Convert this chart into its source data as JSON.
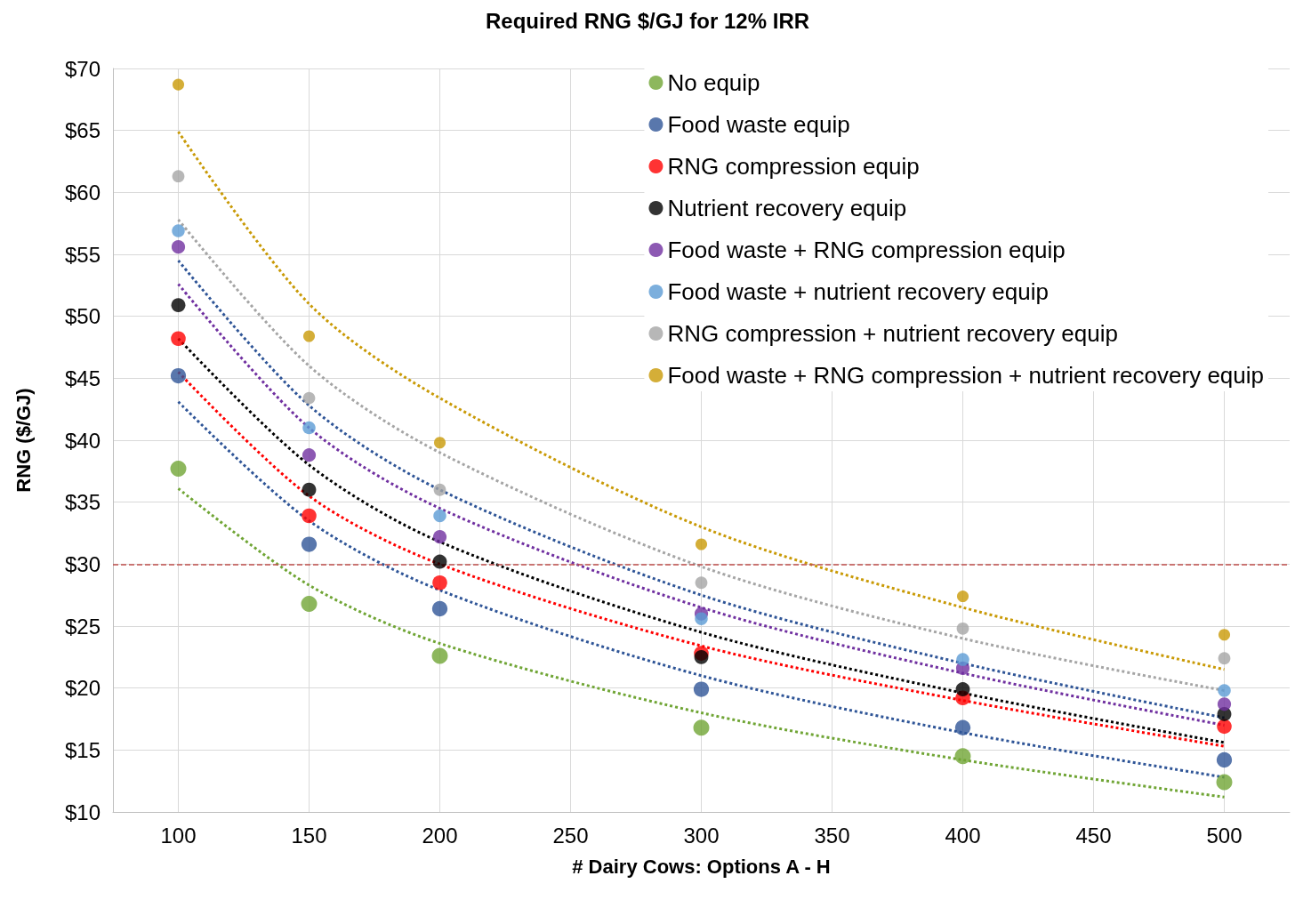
{
  "chart_data": {
    "type": "scatter",
    "title": "Required RNG $/GJ for 12% IRR",
    "xlabel": "# Dairy Cows: Options A - H",
    "ylabel": "RNG ($/GJ)",
    "x": [
      100,
      150,
      200,
      300,
      400,
      500
    ],
    "xlim": [
      75,
      525
    ],
    "xticks": [
      100,
      150,
      200,
      250,
      300,
      350,
      400,
      450,
      500
    ],
    "ylim": [
      10,
      70
    ],
    "yticks": [
      {
        "value": 10,
        "label": "$10"
      },
      {
        "value": 15,
        "label": "$15"
      },
      {
        "value": 20,
        "label": "$20"
      },
      {
        "value": 25,
        "label": "$25"
      },
      {
        "value": 30,
        "label": "$30"
      },
      {
        "value": 35,
        "label": "$35"
      },
      {
        "value": 40,
        "label": "$40"
      },
      {
        "value": 45,
        "label": "$45"
      },
      {
        "value": 50,
        "label": "$50"
      },
      {
        "value": 55,
        "label": "$55"
      },
      {
        "value": 60,
        "label": "$60"
      },
      {
        "value": 65,
        "label": "$65"
      },
      {
        "value": 70,
        "label": "$70"
      }
    ],
    "grid": true,
    "legend": "top right",
    "marker": "circle",
    "ref_lines": [
      {
        "axis": "y",
        "value": 30,
        "color": "#c0504d",
        "line_style": "dashed"
      }
    ],
    "series": [
      {
        "name": "No equip",
        "color": "#70a535",
        "values": [
          37.7,
          26.8,
          22.6,
          16.8,
          14.5,
          12.4
        ]
      },
      {
        "name": "Food waste equip",
        "color": "#2f5597",
        "values": [
          45.2,
          31.6,
          26.4,
          19.9,
          16.8,
          14.2
        ]
      },
      {
        "name": "RNG compression equip",
        "color": "#ff0000",
        "values": [
          48.2,
          33.9,
          28.5,
          22.8,
          19.2,
          16.9
        ]
      },
      {
        "name": "Nutrient recovery equip",
        "color": "#000000",
        "values": [
          50.9,
          36.0,
          30.2,
          22.5,
          19.9,
          17.9
        ]
      },
      {
        "name": "Food waste + RNG compression equip",
        "color": "#7030a0",
        "values": [
          55.6,
          38.8,
          32.2,
          26.0,
          21.6,
          18.7
        ]
      },
      {
        "name": "Food waste + nutrient recovery equip",
        "color": "#5b9bd5",
        "values": [
          56.9,
          41.0,
          33.9,
          25.6,
          22.3,
          19.8
        ]
      },
      {
        "name": "RNG compression + nutrient recovery equip",
        "color": "#a5a5a5",
        "values": [
          61.3,
          43.4,
          36.0,
          28.5,
          24.8,
          22.4
        ]
      },
      {
        "name": "Food waste + RNG compression + nutrient recovery equip",
        "color": "#c99a06",
        "values": [
          68.7,
          48.4,
          39.8,
          31.6,
          27.4,
          24.3
        ]
      },
      {
        "type": "line",
        "marker": "none",
        "line_style": "dotted",
        "color": "#70a535",
        "values": [
          36.1,
          28.3,
          23.6,
          18.0,
          14.2,
          11.2
        ]
      },
      {
        "type": "line",
        "marker": "none",
        "line_style": "dotted",
        "color": "#2f5597",
        "values": [
          43.1,
          33.5,
          27.9,
          21.0,
          16.4,
          12.8
        ]
      },
      {
        "type": "line",
        "marker": "none",
        "line_style": "dotted",
        "color": "#ff0000",
        "values": [
          45.5,
          35.5,
          30.0,
          23.4,
          19.0,
          15.3
        ]
      },
      {
        "type": "line",
        "marker": "none",
        "line_style": "dotted",
        "color": "#000000",
        "values": [
          48.2,
          38.0,
          31.8,
          24.5,
          19.6,
          15.6
        ]
      },
      {
        "type": "line",
        "marker": "none",
        "line_style": "dotted",
        "color": "#7030a0",
        "values": [
          52.6,
          41.0,
          34.5,
          26.5,
          21.2,
          17.0
        ]
      },
      {
        "type": "line",
        "marker": "none",
        "line_style": "dotted",
        "color": "#2f5597",
        "values": [
          54.5,
          42.8,
          36.0,
          27.5,
          22.0,
          17.6
        ]
      },
      {
        "type": "line",
        "marker": "none",
        "line_style": "dotted",
        "color": "#a5a5a5",
        "values": [
          57.8,
          46.0,
          39.0,
          29.8,
          24.0,
          19.8
        ]
      },
      {
        "type": "line",
        "marker": "none",
        "line_style": "dotted",
        "color": "#c99a06",
        "values": [
          64.9,
          51.0,
          43.4,
          33.0,
          26.5,
          21.5
        ]
      }
    ]
  }
}
